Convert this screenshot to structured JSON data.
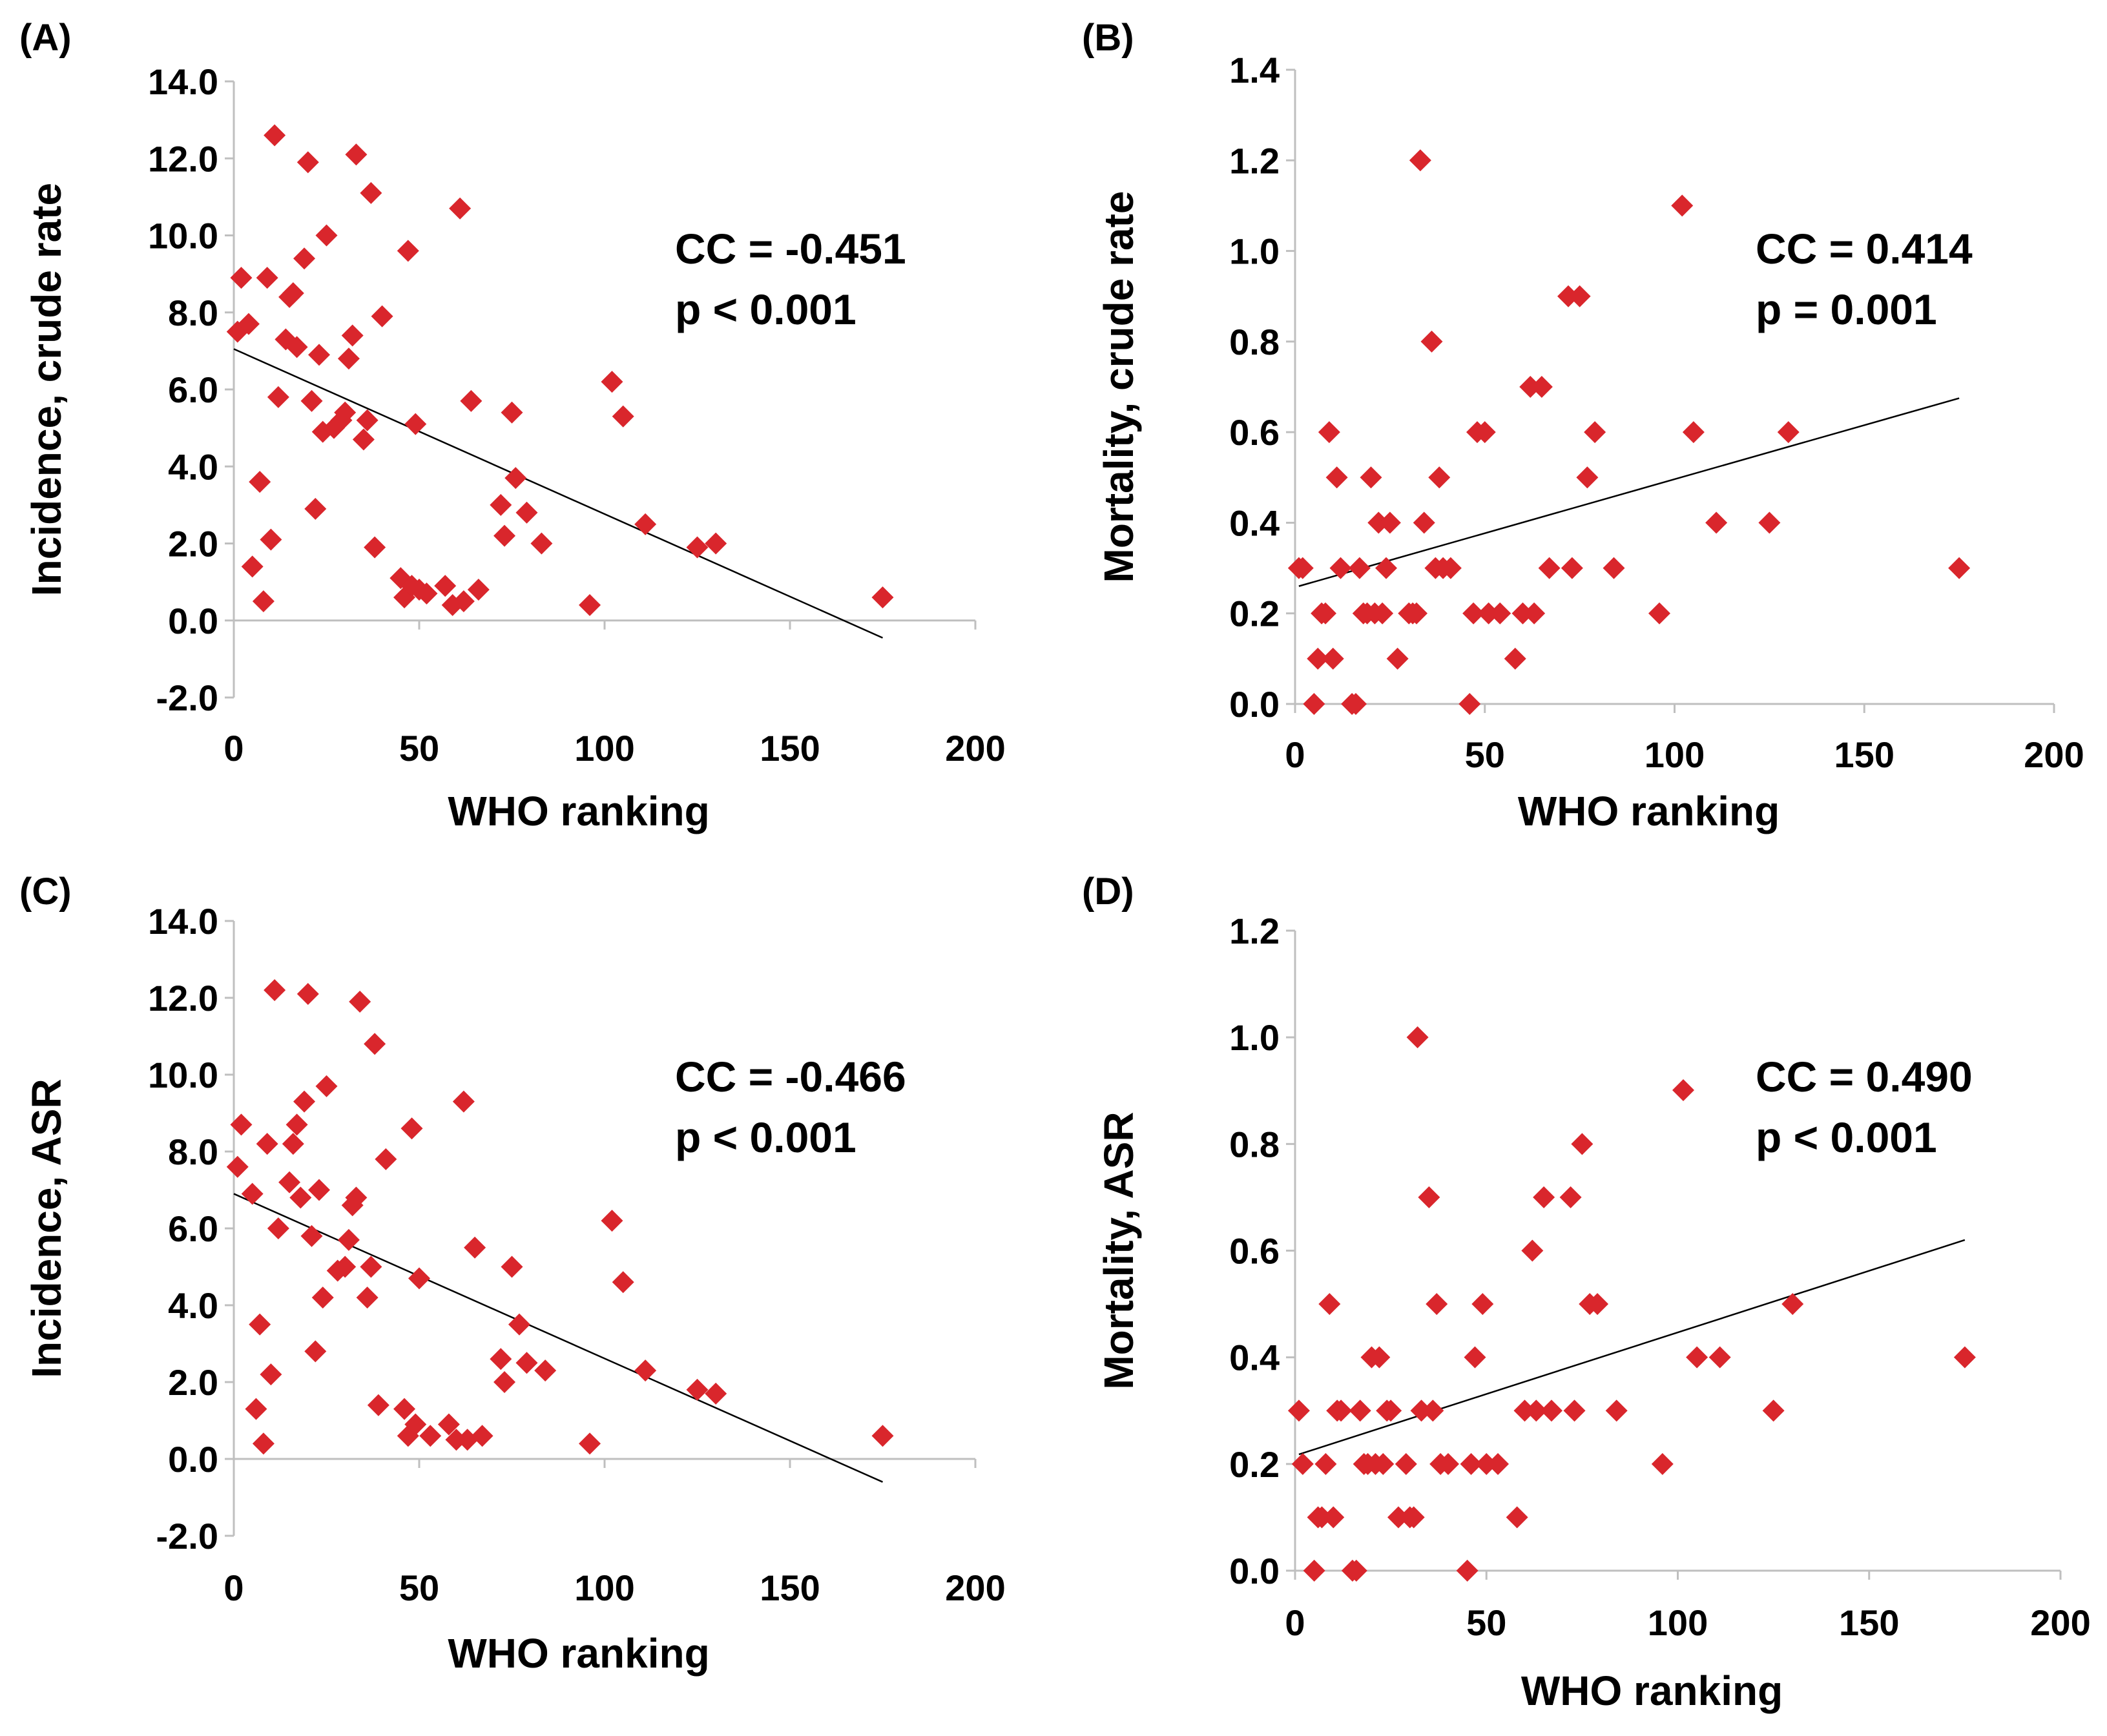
{
  "figure_title": "",
  "colors": {
    "marker": "#D9262C",
    "axis": "#BFBFBF",
    "trendline": "#000000",
    "text": "#000000"
  },
  "chart_data": [
    {
      "type": "scatter",
      "panel_label": "(A)",
      "title": "",
      "xlabel": "WHO ranking",
      "ylabel": "Incidence, crude rate",
      "xlim": [
        0,
        200
      ],
      "ylim": [
        -2.0,
        14.0
      ],
      "xticks": [
        "0",
        "50",
        "100",
        "150",
        "200"
      ],
      "yticks": [
        "-2.0",
        "0.0",
        "2.0",
        "4.0",
        "6.0",
        "8.0",
        "10.0",
        "12.0",
        "14.0"
      ],
      "stat_cc": "CC = -0.451",
      "stat_p": "p < 0.001",
      "legend": false,
      "trendline": {
        "x": [
          0,
          175
        ],
        "y": [
          7.05,
          -0.45
        ]
      },
      "points": [
        [
          1,
          7.5
        ],
        [
          2,
          8.9
        ],
        [
          4,
          7.7
        ],
        [
          5,
          1.4
        ],
        [
          7,
          3.6
        ],
        [
          8,
          0.5
        ],
        [
          9,
          8.9
        ],
        [
          10,
          2.1
        ],
        [
          11,
          12.6
        ],
        [
          12,
          5.8
        ],
        [
          14,
          7.3
        ],
        [
          15,
          8.4
        ],
        [
          16,
          8.5
        ],
        [
          17,
          7.1
        ],
        [
          19,
          9.4
        ],
        [
          20,
          11.9
        ],
        [
          21,
          5.7
        ],
        [
          22,
          2.9
        ],
        [
          23,
          6.9
        ],
        [
          24,
          4.9
        ],
        [
          25,
          10.0
        ],
        [
          27,
          5.0
        ],
        [
          29,
          5.2
        ],
        [
          30,
          5.4
        ],
        [
          31,
          6.8
        ],
        [
          32,
          7.4
        ],
        [
          33,
          12.1
        ],
        [
          35,
          4.7
        ],
        [
          36,
          5.2
        ],
        [
          37,
          11.1
        ],
        [
          38,
          1.9
        ],
        [
          40,
          7.9
        ],
        [
          45,
          1.1
        ],
        [
          46,
          0.6
        ],
        [
          47,
          9.6
        ],
        [
          48,
          0.9
        ],
        [
          49,
          5.1
        ],
        [
          50,
          0.8
        ],
        [
          52,
          0.7
        ],
        [
          57,
          0.9
        ],
        [
          59,
          0.4
        ],
        [
          61,
          10.7
        ],
        [
          62,
          0.5
        ],
        [
          64,
          5.7
        ],
        [
          66,
          0.8
        ],
        [
          72,
          3.0
        ],
        [
          73,
          2.2
        ],
        [
          75,
          5.4
        ],
        [
          76,
          3.7
        ],
        [
          79,
          2.8
        ],
        [
          83,
          2.0
        ],
        [
          96,
          0.4
        ],
        [
          102,
          6.2
        ],
        [
          105,
          5.3
        ],
        [
          111,
          2.5
        ],
        [
          125,
          1.9
        ],
        [
          130,
          2.0
        ],
        [
          175,
          0.6
        ]
      ]
    },
    {
      "type": "scatter",
      "panel_label": "(B)",
      "title": "",
      "xlabel": "WHO ranking",
      "ylabel": "Mortality, crude rate",
      "xlim": [
        0,
        200
      ],
      "ylim": [
        0,
        1.4
      ],
      "xticks": [
        "0",
        "50",
        "100",
        "150",
        "200"
      ],
      "yticks": [
        "0.0",
        "0.2",
        "0.4",
        "0.6",
        "0.8",
        "1.0",
        "1.2",
        "1.4"
      ],
      "stat_cc": "CC = 0.414",
      "stat_p": "p = 0.001",
      "legend": false,
      "trendline": {
        "x": [
          1,
          175
        ],
        "y": [
          0.26,
          0.675
        ]
      },
      "points": [
        [
          1,
          0.3
        ],
        [
          2,
          0.3
        ],
        [
          5,
          0.0
        ],
        [
          6,
          0.1
        ],
        [
          7,
          0.2
        ],
        [
          8,
          0.2
        ],
        [
          9,
          0.6
        ],
        [
          10,
          0.1
        ],
        [
          11,
          0.5
        ],
        [
          12,
          0.3
        ],
        [
          15,
          0.0
        ],
        [
          16,
          0.0
        ],
        [
          17,
          0.3
        ],
        [
          18,
          0.2
        ],
        [
          19,
          0.2
        ],
        [
          20,
          0.5
        ],
        [
          21,
          0.2
        ],
        [
          22,
          0.4
        ],
        [
          23,
          0.2
        ],
        [
          24,
          0.3
        ],
        [
          25,
          0.4
        ],
        [
          27,
          0.1
        ],
        [
          30,
          0.2
        ],
        [
          31,
          0.2
        ],
        [
          32,
          0.2
        ],
        [
          33,
          1.2
        ],
        [
          34,
          0.4
        ],
        [
          36,
          0.8
        ],
        [
          37,
          0.3
        ],
        [
          38,
          0.5
        ],
        [
          39,
          0.3
        ],
        [
          41,
          0.3
        ],
        [
          46,
          0.0
        ],
        [
          47,
          0.2
        ],
        [
          48,
          0.6
        ],
        [
          50,
          0.6
        ],
        [
          51,
          0.2
        ],
        [
          54,
          0.2
        ],
        [
          58,
          0.1
        ],
        [
          60,
          0.2
        ],
        [
          62,
          0.7
        ],
        [
          63,
          0.2
        ],
        [
          65,
          0.7
        ],
        [
          67,
          0.3
        ],
        [
          72,
          0.9
        ],
        [
          73,
          0.3
        ],
        [
          75,
          0.9
        ],
        [
          77,
          0.5
        ],
        [
          79,
          0.6
        ],
        [
          84,
          0.3
        ],
        [
          96,
          0.2
        ],
        [
          102,
          1.1
        ],
        [
          105,
          0.6
        ],
        [
          111,
          0.4
        ],
        [
          125,
          0.4
        ],
        [
          130,
          0.6
        ],
        [
          175,
          0.3
        ]
      ]
    },
    {
      "type": "scatter",
      "panel_label": "(C)",
      "title": "",
      "xlabel": "WHO ranking",
      "ylabel": "Incidence, ASR",
      "xlim": [
        0,
        200
      ],
      "ylim": [
        -2.0,
        14.0
      ],
      "xticks": [
        "0",
        "50",
        "100",
        "150",
        "200"
      ],
      "yticks": [
        "-2.0",
        "0.0",
        "2.0",
        "4.0",
        "6.0",
        "8.0",
        "10.0",
        "12.0",
        "14.0"
      ],
      "stat_cc": "CC = -0.466",
      "stat_p": "p < 0.001",
      "legend": false,
      "trendline": {
        "x": [
          0,
          175
        ],
        "y": [
          6.9,
          -0.6
        ]
      },
      "points": [
        [
          1,
          7.6
        ],
        [
          2,
          8.7
        ],
        [
          5,
          6.9
        ],
        [
          6,
          1.3
        ],
        [
          7,
          3.5
        ],
        [
          8,
          0.4
        ],
        [
          9,
          8.2
        ],
        [
          10,
          2.2
        ],
        [
          11,
          12.2
        ],
        [
          12,
          6.0
        ],
        [
          15,
          7.2
        ],
        [
          16,
          8.2
        ],
        [
          17,
          8.7
        ],
        [
          18,
          6.8
        ],
        [
          19,
          9.3
        ],
        [
          20,
          12.1
        ],
        [
          21,
          5.8
        ],
        [
          22,
          2.8
        ],
        [
          23,
          7.0
        ],
        [
          24,
          4.2
        ],
        [
          25,
          9.7
        ],
        [
          28,
          4.9
        ],
        [
          30,
          5.0
        ],
        [
          31,
          5.7
        ],
        [
          32,
          6.6
        ],
        [
          33,
          6.8
        ],
        [
          34,
          11.9
        ],
        [
          36,
          4.2
        ],
        [
          37,
          5.0
        ],
        [
          38,
          10.8
        ],
        [
          39,
          1.4
        ],
        [
          41,
          7.8
        ],
        [
          46,
          1.3
        ],
        [
          47,
          0.6
        ],
        [
          48,
          8.6
        ],
        [
          49,
          0.9
        ],
        [
          50,
          4.7
        ],
        [
          53,
          0.6
        ],
        [
          58,
          0.9
        ],
        [
          60,
          0.5
        ],
        [
          62,
          9.3
        ],
        [
          63,
          0.5
        ],
        [
          65,
          5.5
        ],
        [
          67,
          0.6
        ],
        [
          72,
          2.6
        ],
        [
          73,
          2.0
        ],
        [
          75,
          5.0
        ],
        [
          77,
          3.5
        ],
        [
          79,
          2.5
        ],
        [
          84,
          2.3
        ],
        [
          96,
          0.4
        ],
        [
          102,
          6.2
        ],
        [
          105,
          4.6
        ],
        [
          111,
          2.3
        ],
        [
          125,
          1.8
        ],
        [
          130,
          1.7
        ],
        [
          175,
          0.6
        ]
      ]
    },
    {
      "type": "scatter",
      "panel_label": "(D)",
      "title": "",
      "xlabel": "WHO ranking",
      "ylabel": "Mortality, ASR",
      "xlim": [
        0,
        200
      ],
      "ylim": [
        0,
        1.2
      ],
      "xticks": [
        "0",
        "50",
        "100",
        "150",
        "200"
      ],
      "yticks": [
        "0.0",
        "0.2",
        "0.4",
        "0.6",
        "0.8",
        "1.0",
        "1.2"
      ],
      "stat_cc": "CC = 0.490",
      "stat_p": "p < 0.001",
      "legend": true,
      "trendline": {
        "x": [
          1,
          175
        ],
        "y": [
          0.218,
          0.62
        ]
      },
      "points": [
        [
          1,
          0.3
        ],
        [
          2,
          0.2
        ],
        [
          5,
          0.0
        ],
        [
          6,
          0.1
        ],
        [
          7,
          0.1
        ],
        [
          8,
          0.2
        ],
        [
          9,
          0.5
        ],
        [
          10,
          0.1
        ],
        [
          11,
          0.3
        ],
        [
          12,
          0.3
        ],
        [
          15,
          0.0
        ],
        [
          16,
          0.0
        ],
        [
          17,
          0.3
        ],
        [
          18,
          0.2
        ],
        [
          19,
          0.2
        ],
        [
          20,
          0.4
        ],
        [
          21,
          0.2
        ],
        [
          22,
          0.4
        ],
        [
          23,
          0.2
        ],
        [
          24,
          0.3
        ],
        [
          25,
          0.3
        ],
        [
          27,
          0.1
        ],
        [
          29,
          0.2
        ],
        [
          30,
          0.1
        ],
        [
          31,
          0.1
        ],
        [
          32,
          1.0
        ],
        [
          33,
          0.3
        ],
        [
          35,
          0.7
        ],
        [
          36,
          0.3
        ],
        [
          37,
          0.5
        ],
        [
          38,
          0.2
        ],
        [
          40,
          0.2
        ],
        [
          45,
          0.0
        ],
        [
          46,
          0.2
        ],
        [
          47,
          0.4
        ],
        [
          49,
          0.5
        ],
        [
          50,
          0.2
        ],
        [
          53,
          0.2
        ],
        [
          58,
          0.1
        ],
        [
          60,
          0.3
        ],
        [
          62,
          0.6
        ],
        [
          63,
          0.3
        ],
        [
          65,
          0.7
        ],
        [
          67,
          0.3
        ],
        [
          72,
          0.7
        ],
        [
          73,
          0.3
        ],
        [
          75,
          0.8
        ],
        [
          77,
          0.5
        ],
        [
          79,
          0.5
        ],
        [
          84,
          0.3
        ],
        [
          96,
          0.2
        ],
        [
          105,
          0.4
        ],
        [
          111,
          0.4
        ],
        [
          125,
          0.3
        ],
        [
          130,
          0.5
        ],
        [
          175,
          0.4
        ]
      ]
    }
  ]
}
